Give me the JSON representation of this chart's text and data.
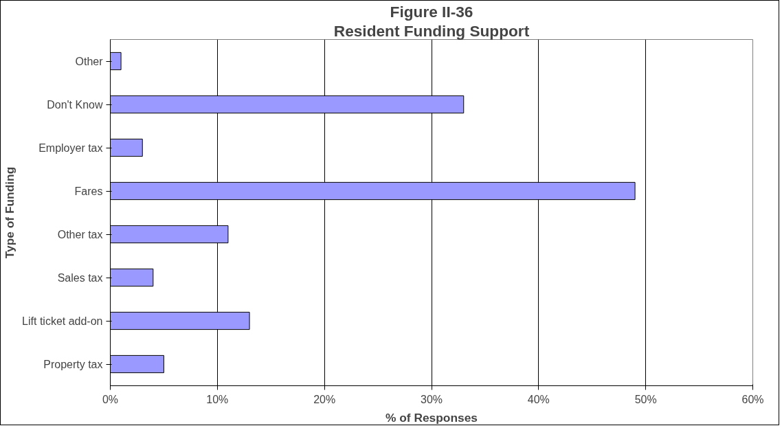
{
  "chart_data": {
    "type": "bar",
    "orientation": "horizontal",
    "title": "Figure II-36",
    "subtitle": "Resident Funding Support",
    "xlabel": "% of Responses",
    "ylabel": "Type of Funding",
    "categories": [
      "Other",
      "Don't Know",
      "Employer tax",
      "Fares",
      "Other tax",
      "Sales tax",
      "Lift ticket add-on",
      "Property tax"
    ],
    "values": [
      1,
      33,
      3,
      49,
      11,
      4,
      13,
      5
    ],
    "color": "#9999ff",
    "xlim": [
      0,
      60
    ],
    "xticks": [
      {
        "value": 0,
        "label": "0%"
      },
      {
        "value": 10,
        "label": "10%"
      },
      {
        "value": 20,
        "label": "20%"
      },
      {
        "value": 30,
        "label": "30%"
      },
      {
        "value": 40,
        "label": "40%"
      },
      {
        "value": 50,
        "label": "50%"
      },
      {
        "value": 60,
        "label": "60%"
      }
    ],
    "grid": "x"
  }
}
